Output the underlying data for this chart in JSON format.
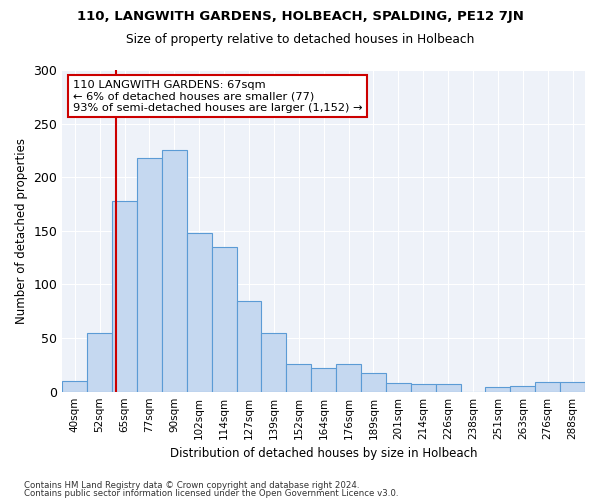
{
  "title": "110, LANGWITH GARDENS, HOLBEACH, SPALDING, PE12 7JN",
  "subtitle": "Size of property relative to detached houses in Holbeach",
  "xlabel": "Distribution of detached houses by size in Holbeach",
  "ylabel": "Number of detached properties",
  "bar_labels": [
    "40sqm",
    "52sqm",
    "65sqm",
    "77sqm",
    "90sqm",
    "102sqm",
    "114sqm",
    "127sqm",
    "139sqm",
    "152sqm",
    "164sqm",
    "176sqm",
    "189sqm",
    "201sqm",
    "214sqm",
    "226sqm",
    "238sqm",
    "251sqm",
    "263sqm",
    "276sqm",
    "288sqm"
  ],
  "bar_values": [
    10,
    55,
    178,
    218,
    225,
    148,
    135,
    85,
    55,
    26,
    22,
    26,
    17,
    8,
    7,
    7,
    0,
    4,
    5,
    9,
    9
  ],
  "bar_color": "#c5d8f0",
  "bar_edge_color": "#5b9bd5",
  "vline_color": "#cc0000",
  "property_sqm": 67,
  "bin_edges": [
    40,
    52,
    65,
    77,
    90,
    102,
    114,
    127,
    139,
    152,
    164,
    176,
    189,
    201,
    214,
    226,
    238,
    251,
    263,
    276,
    288,
    300
  ],
  "annotation_line1": "110 LANGWITH GARDENS: 67sqm",
  "annotation_line2": "← 6% of detached houses are smaller (77)",
  "annotation_line3": "93% of semi-detached houses are larger (1,152) →",
  "annotation_box_color": "#ffffff",
  "annotation_box_edge": "#cc0000",
  "ylim": [
    0,
    300
  ],
  "yticks": [
    0,
    50,
    100,
    150,
    200,
    250,
    300
  ],
  "bg_color": "#eef2f9",
  "footer_line1": "Contains HM Land Registry data © Crown copyright and database right 2024.",
  "footer_line2": "Contains public sector information licensed under the Open Government Licence v3.0."
}
